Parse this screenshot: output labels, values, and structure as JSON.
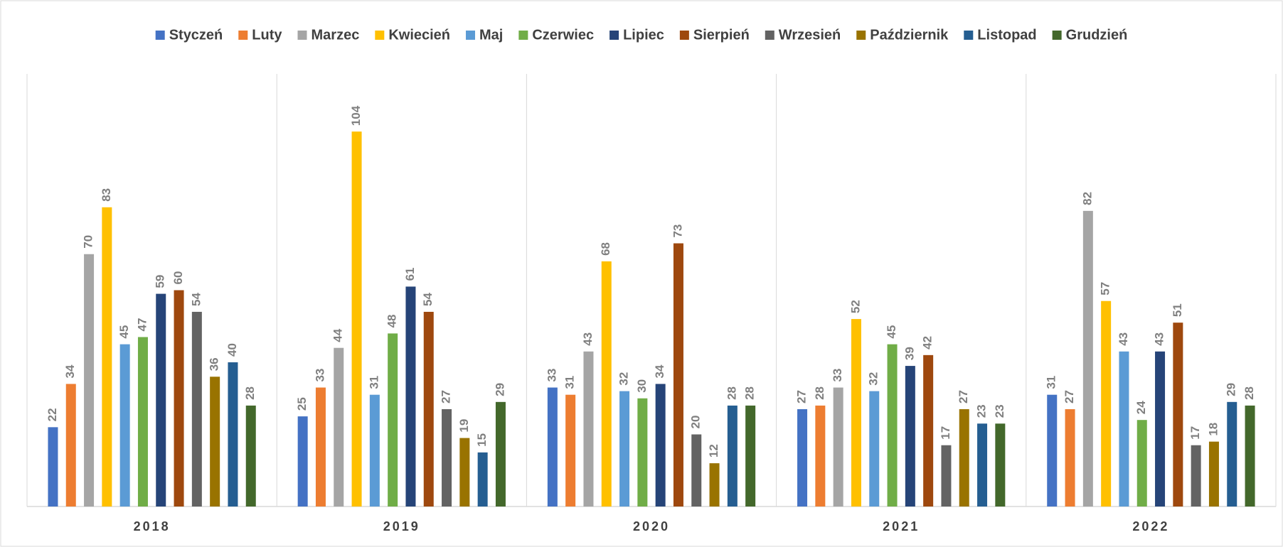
{
  "chart_data": {
    "type": "bar",
    "categories": [
      "2018",
      "2019",
      "2020",
      "2021",
      "2022"
    ],
    "series": [
      {
        "name": "Styczeń",
        "color": "#4472c4",
        "values": [
          22,
          25,
          33,
          27,
          31
        ]
      },
      {
        "name": "Luty",
        "color": "#ed7d31",
        "values": [
          34,
          33,
          31,
          28,
          27
        ]
      },
      {
        "name": "Marzec",
        "color": "#a5a5a5",
        "values": [
          70,
          44,
          43,
          33,
          82
        ]
      },
      {
        "name": "Kwiecień",
        "color": "#ffc000",
        "values": [
          83,
          104,
          68,
          52,
          57
        ]
      },
      {
        "name": "Maj",
        "color": "#5b9bd5",
        "values": [
          45,
          31,
          32,
          32,
          43
        ]
      },
      {
        "name": "Czerwiec",
        "color": "#70ad47",
        "values": [
          47,
          48,
          30,
          45,
          24
        ]
      },
      {
        "name": "Lipiec",
        "color": "#264478",
        "values": [
          59,
          61,
          34,
          39,
          43
        ]
      },
      {
        "name": "Sierpień",
        "color": "#9e480e",
        "values": [
          60,
          54,
          73,
          42,
          51
        ]
      },
      {
        "name": "Wrzesień",
        "color": "#636363",
        "values": [
          54,
          27,
          20,
          17,
          17
        ]
      },
      {
        "name": "Październik",
        "color": "#997300",
        "values": [
          36,
          19,
          12,
          27,
          18
        ]
      },
      {
        "name": "Listopad",
        "color": "#255e91",
        "values": [
          40,
          15,
          28,
          23,
          29
        ]
      },
      {
        "name": "Grudzień",
        "color": "#43682b",
        "values": [
          28,
          29,
          28,
          23,
          28
        ]
      }
    ],
    "ylim": [
      0,
      120
    ],
    "legend": "top"
  }
}
